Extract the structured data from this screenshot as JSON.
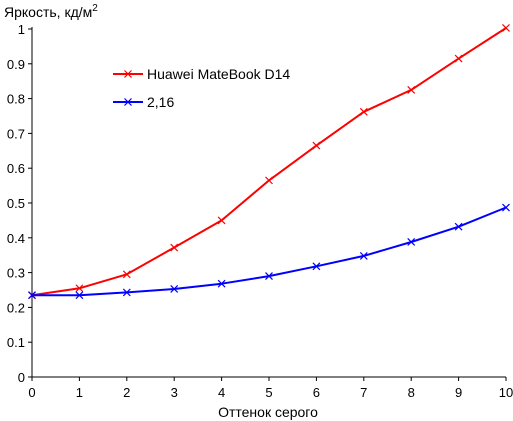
{
  "chart_data": {
    "type": "line",
    "title": "",
    "xlabel": "Оттенок серого",
    "ylabel": "Яркость, кд/м",
    "ylabel_superscript": "2",
    "x": [
      0,
      1,
      2,
      3,
      4,
      5,
      6,
      7,
      8,
      9,
      10
    ],
    "x_ticks": [
      "0",
      "1",
      "2",
      "3",
      "4",
      "5",
      "6",
      "7",
      "8",
      "9",
      "10"
    ],
    "y_ticks": [
      "0",
      "0.1",
      "0.2",
      "0.3",
      "0.4",
      "0.5",
      "0.6",
      "0.7",
      "0.8",
      "0.9",
      "1"
    ],
    "xlim": [
      0,
      10
    ],
    "ylim": [
      0,
      1
    ],
    "grid": false,
    "legend_position": "top-left",
    "series": [
      {
        "name": "Huawei MateBook D14",
        "color": "#ff0000",
        "marker": "x",
        "values": [
          0.235,
          0.255,
          0.295,
          0.372,
          0.45,
          0.565,
          0.665,
          0.762,
          0.825,
          0.915,
          1.003
        ]
      },
      {
        "name": "2,16",
        "color": "#0000ff",
        "marker": "x",
        "values": [
          0.235,
          0.235,
          0.243,
          0.253,
          0.268,
          0.29,
          0.318,
          0.348,
          0.388,
          0.432,
          0.487
        ]
      }
    ]
  }
}
